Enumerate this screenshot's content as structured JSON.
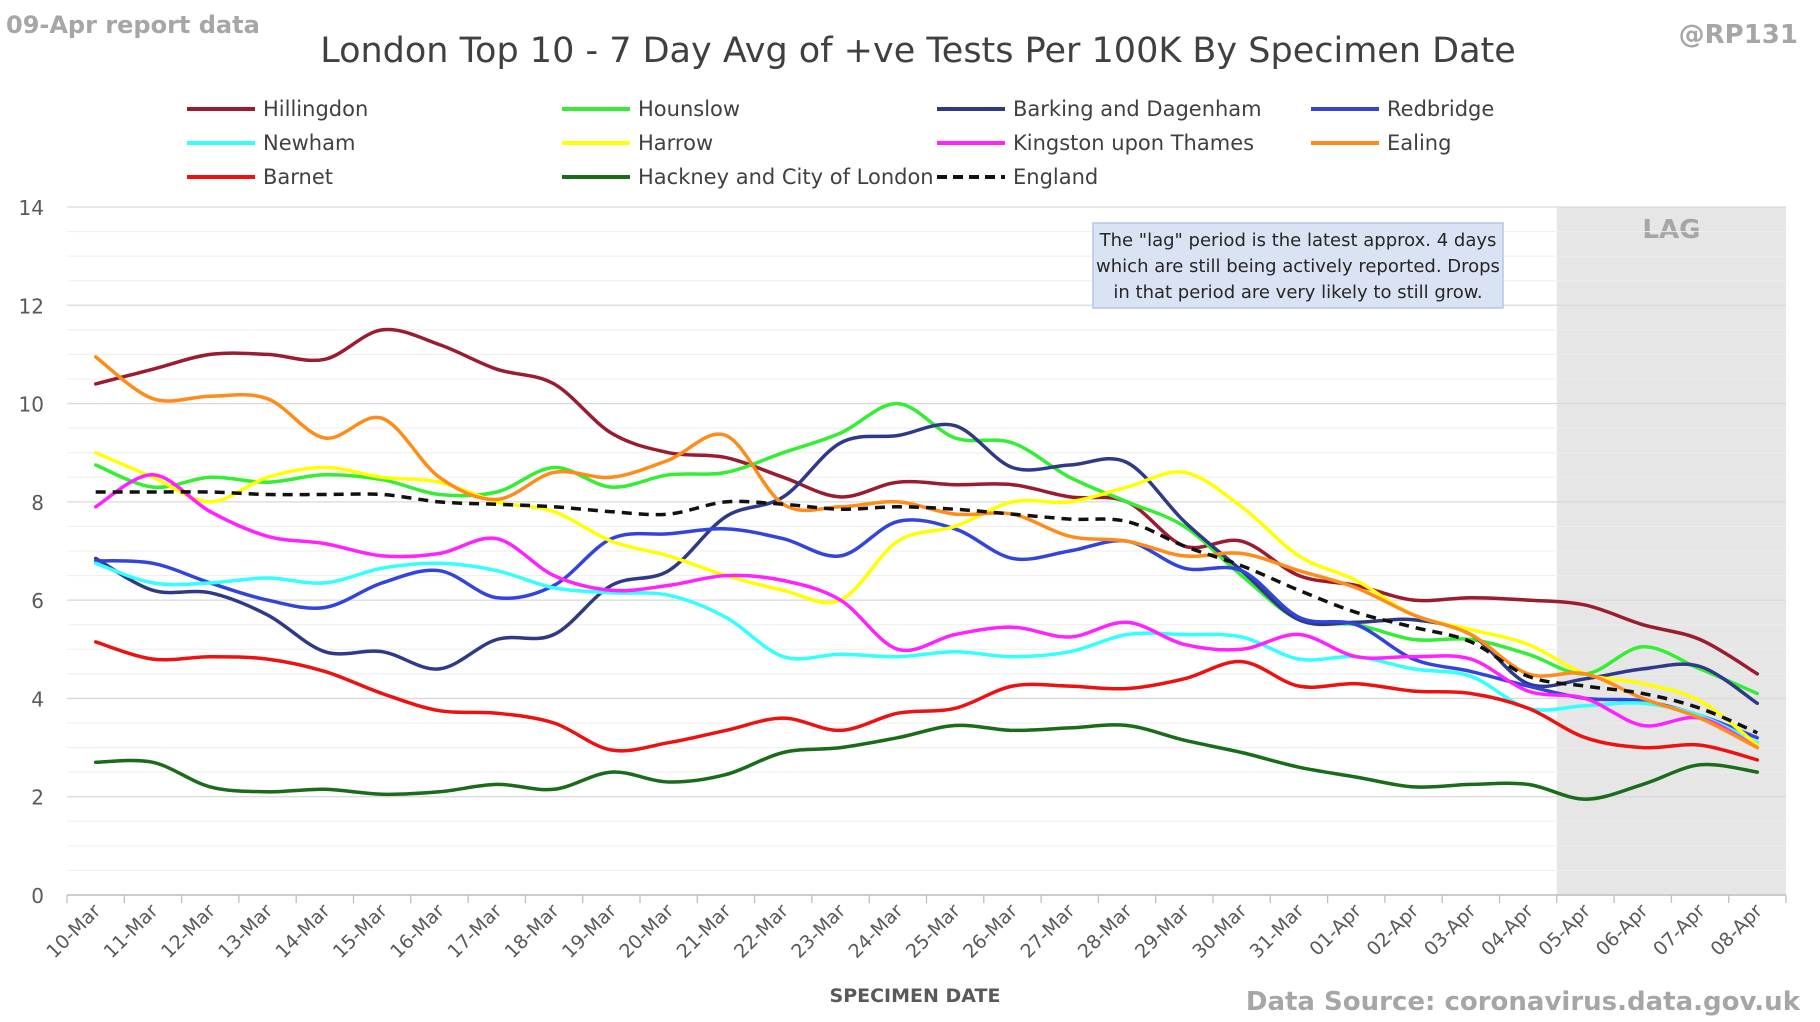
{
  "header": {
    "report_label": "09-Apr report data",
    "handle": "@RP131",
    "source": "Data Source: coronavirus.data.gov.uk"
  },
  "lag": {
    "label": "LAG",
    "start": "04-Apr",
    "note": [
      "The \"lag\" period is the latest approx. 4 days",
      "which are still being actively reported. Drops",
      "in that period are very likely to still grow."
    ]
  },
  "chart_data": {
    "type": "line",
    "title": "London Top 10 - 7 Day Avg of +ve Tests Per 100K By Specimen Date",
    "xlabel": "SPECIMEN DATE",
    "ylabel": "",
    "ylim": [
      0,
      14
    ],
    "yticks": [
      0,
      2,
      4,
      6,
      8,
      10,
      12,
      14
    ],
    "grid": true,
    "legend_position": "top",
    "categories": [
      "10-Mar",
      "11-Mar",
      "12-Mar",
      "13-Mar",
      "14-Mar",
      "15-Mar",
      "16-Mar",
      "17-Mar",
      "18-Mar",
      "19-Mar",
      "20-Mar",
      "21-Mar",
      "22-Mar",
      "23-Mar",
      "24-Mar",
      "25-Mar",
      "26-Mar",
      "27-Mar",
      "28-Mar",
      "29-Mar",
      "30-Mar",
      "31-Mar",
      "01-Apr",
      "02-Apr",
      "03-Apr",
      "04-Apr",
      "05-Apr",
      "06-Apr",
      "07-Apr",
      "08-Apr"
    ],
    "series": [
      {
        "name": "Hillingdon",
        "color": "#9b1b30",
        "dashed": false,
        "values": [
          10.4,
          10.7,
          11.0,
          11.0,
          10.9,
          11.5,
          11.2,
          10.7,
          10.4,
          9.4,
          9.0,
          8.9,
          8.5,
          8.1,
          8.4,
          8.35,
          8.35,
          8.1,
          8.0,
          7.1,
          7.2,
          6.5,
          6.3,
          6.0,
          6.05,
          6.0,
          5.9,
          5.5,
          5.2,
          4.5
        ]
      },
      {
        "name": "Hounslow",
        "color": "#33ee33",
        "dashed": false,
        "values": [
          8.75,
          8.3,
          8.5,
          8.4,
          8.55,
          8.45,
          8.15,
          8.2,
          8.7,
          8.3,
          8.55,
          8.6,
          9.0,
          9.4,
          10.0,
          9.3,
          9.2,
          8.5,
          8.0,
          7.5,
          6.5,
          5.6,
          5.5,
          5.2,
          5.2,
          4.9,
          4.5,
          5.05,
          4.6,
          4.1
        ]
      },
      {
        "name": "Barking and Dagenham",
        "color": "#2e3a87",
        "dashed": false,
        "values": [
          6.85,
          6.2,
          6.15,
          5.7,
          4.95,
          4.95,
          4.6,
          5.2,
          5.3,
          6.3,
          6.6,
          7.7,
          8.1,
          9.2,
          9.35,
          9.55,
          8.7,
          8.75,
          8.8,
          7.6,
          6.6,
          5.6,
          5.55,
          5.6,
          5.3,
          4.3,
          4.4,
          4.6,
          4.65,
          3.9
        ]
      },
      {
        "name": "Redbridge",
        "color": "#3344dd",
        "dashed": false,
        "values": [
          6.8,
          6.75,
          6.35,
          6.0,
          5.85,
          6.35,
          6.6,
          6.05,
          6.3,
          7.25,
          7.35,
          7.45,
          7.25,
          6.9,
          7.6,
          7.45,
          6.85,
          7.0,
          7.2,
          6.65,
          6.6,
          5.65,
          5.5,
          4.8,
          4.55,
          4.25,
          4.0,
          3.95,
          3.65,
          3.2
        ]
      },
      {
        "name": "Newham",
        "color": "#33ffff",
        "dashed": false,
        "values": [
          6.75,
          6.35,
          6.35,
          6.45,
          6.35,
          6.65,
          6.75,
          6.6,
          6.25,
          6.15,
          6.1,
          5.65,
          4.85,
          4.9,
          4.85,
          4.95,
          4.85,
          4.95,
          5.3,
          5.3,
          5.25,
          4.8,
          4.85,
          4.6,
          4.45,
          3.8,
          3.85,
          3.9,
          3.65,
          3.1
        ]
      },
      {
        "name": "Harrow",
        "color": "#ffff00",
        "dashed": false,
        "values": [
          9.0,
          8.5,
          8.0,
          8.5,
          8.7,
          8.5,
          8.4,
          8.0,
          7.8,
          7.2,
          6.9,
          6.5,
          6.2,
          6.0,
          7.2,
          7.5,
          8.0,
          8.0,
          8.3,
          8.6,
          7.9,
          6.9,
          6.4,
          5.7,
          5.4,
          5.1,
          4.5,
          4.3,
          3.95,
          3.05
        ]
      },
      {
        "name": "Kingston upon Thames",
        "color": "#ff22ff",
        "dashed": false,
        "values": [
          7.9,
          8.55,
          7.8,
          7.3,
          7.15,
          6.9,
          6.95,
          7.25,
          6.5,
          6.2,
          6.3,
          6.5,
          6.4,
          6.0,
          5.0,
          5.3,
          5.45,
          5.25,
          5.55,
          5.1,
          5.0,
          5.3,
          4.85,
          4.85,
          4.8,
          4.15,
          4.0,
          3.45,
          3.6,
          3.0
        ]
      },
      {
        "name": "Ealing",
        "color": "#ff8c1a",
        "dashed": false,
        "values": [
          10.95,
          10.1,
          10.15,
          10.1,
          9.3,
          9.7,
          8.5,
          8.05,
          8.6,
          8.5,
          8.85,
          9.35,
          7.95,
          7.9,
          8.0,
          7.75,
          7.75,
          7.3,
          7.2,
          6.9,
          6.95,
          6.6,
          6.25,
          5.7,
          5.3,
          4.5,
          4.5,
          4.0,
          3.6,
          3.0
        ]
      },
      {
        "name": "Barnet",
        "color": "#ee1111",
        "dashed": false,
        "values": [
          5.15,
          4.8,
          4.85,
          4.8,
          4.55,
          4.1,
          3.75,
          3.7,
          3.5,
          2.95,
          3.1,
          3.35,
          3.6,
          3.35,
          3.7,
          3.8,
          4.25,
          4.25,
          4.2,
          4.4,
          4.75,
          4.25,
          4.3,
          4.15,
          4.1,
          3.8,
          3.2,
          3.0,
          3.05,
          2.75
        ]
      },
      {
        "name": "Hackney and City of London",
        "color": "#1a6b1a",
        "dashed": false,
        "values": [
          2.7,
          2.7,
          2.2,
          2.1,
          2.15,
          2.05,
          2.1,
          2.25,
          2.15,
          2.5,
          2.3,
          2.45,
          2.9,
          3.0,
          3.2,
          3.45,
          3.35,
          3.4,
          3.45,
          3.15,
          2.9,
          2.6,
          2.4,
          2.2,
          2.25,
          2.25,
          1.95,
          2.25,
          2.65,
          2.5
        ]
      },
      {
        "name": "England",
        "color": "#111111",
        "dashed": true,
        "values": [
          8.2,
          8.2,
          8.2,
          8.15,
          8.15,
          8.15,
          8.0,
          7.95,
          7.9,
          7.8,
          7.75,
          8.0,
          7.95,
          7.85,
          7.9,
          7.85,
          7.75,
          7.65,
          7.6,
          7.1,
          6.7,
          6.2,
          5.75,
          5.45,
          5.15,
          4.45,
          4.25,
          4.1,
          3.8,
          3.3
        ]
      }
    ]
  }
}
